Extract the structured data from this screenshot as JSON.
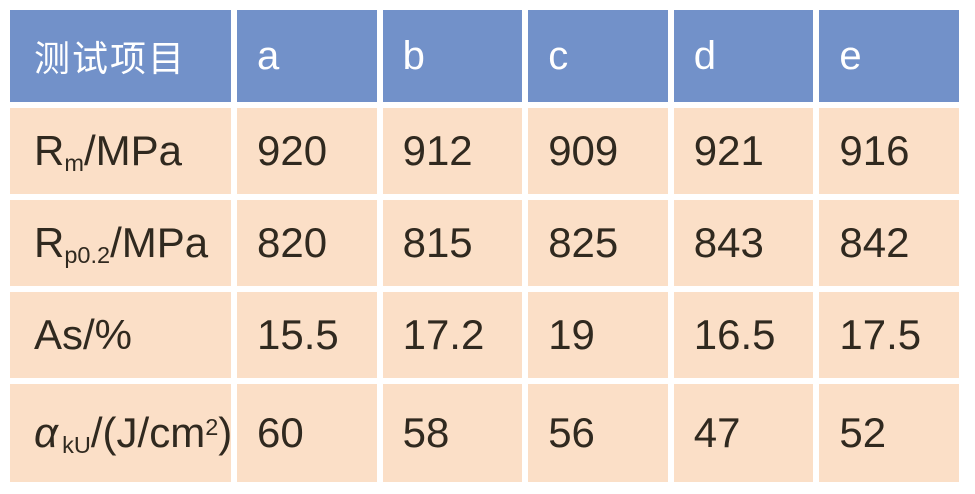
{
  "colors": {
    "header_bg": "#7291c9",
    "header_text": "#ffffff",
    "cell_bg": "#fbdfc7",
    "cell_text": "#30291f",
    "gap": "#ffffff"
  },
  "table": {
    "header": {
      "label": "测试项目",
      "columns": [
        "a",
        "b",
        "c",
        "d",
        "e"
      ]
    },
    "rows": [
      {
        "name": "row-rm-mpa",
        "label_segments": [
          {
            "t": "R"
          },
          {
            "s": "m"
          },
          {
            "t": "/MPa"
          }
        ],
        "values": [
          "920",
          "912",
          "909",
          "921",
          "916"
        ]
      },
      {
        "name": "row-rp02-mpa",
        "label_segments": [
          {
            "t": "R"
          },
          {
            "s": "p0.2"
          },
          {
            "t": "/MPa"
          }
        ],
        "values": [
          "820",
          "815",
          "825",
          "843",
          "842"
        ]
      },
      {
        "name": "row-as-percent",
        "label_segments": [
          {
            "t": "As/%"
          }
        ],
        "values": [
          "15.5",
          "17.2",
          "19",
          "16.5",
          "17.5"
        ]
      },
      {
        "name": "row-aku-j-cm2",
        "label_segments": [
          {
            "i": "α"
          },
          {
            "s": "kU"
          },
          {
            "t": "/(J/cm"
          },
          {
            "p": "2"
          },
          {
            "t": ")"
          }
        ],
        "values": [
          "60",
          "58",
          "56",
          "47",
          "52"
        ]
      }
    ]
  },
  "chart_data": {
    "type": "table",
    "columns": [
      "测试项目",
      "a",
      "b",
      "c",
      "d",
      "e"
    ],
    "rows": [
      [
        "Rm/MPa",
        920,
        912,
        909,
        921,
        916
      ],
      [
        "Rp0.2/MPa",
        820,
        815,
        825,
        843,
        842
      ],
      [
        "As/%",
        15.5,
        17.2,
        19,
        16.5,
        17.5
      ],
      [
        "αkU/(J/cm²)",
        60,
        58,
        56,
        47,
        52
      ]
    ]
  }
}
